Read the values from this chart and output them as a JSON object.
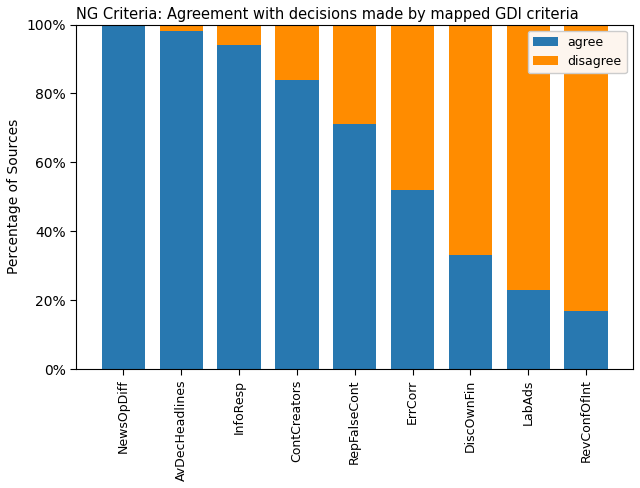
{
  "title": "NG Criteria: Agreement with decisions made by mapped GDI criteria",
  "categories": [
    "NewsOpDiff",
    "AvDecHeadlines",
    "InfoResp",
    "ContCreators",
    "RepFalseCont",
    "ErrCorr",
    "DiscOwnFin",
    "LabAds",
    "RevConfOfInt"
  ],
  "agree": [
    100,
    98,
    94,
    84,
    71,
    52,
    33,
    23,
    17
  ],
  "disagree": [
    0,
    2,
    6,
    16,
    29,
    48,
    67,
    77,
    83
  ],
  "agree_color": "#2878B0",
  "disagree_color": "#FF8C00",
  "ylabel": "Percentage of Sources",
  "ylim": [
    0,
    100
  ],
  "legend_labels": [
    "agree",
    "disagree"
  ],
  "background_color": "#ffffff",
  "legend_facecolor": "#fdf5ee"
}
